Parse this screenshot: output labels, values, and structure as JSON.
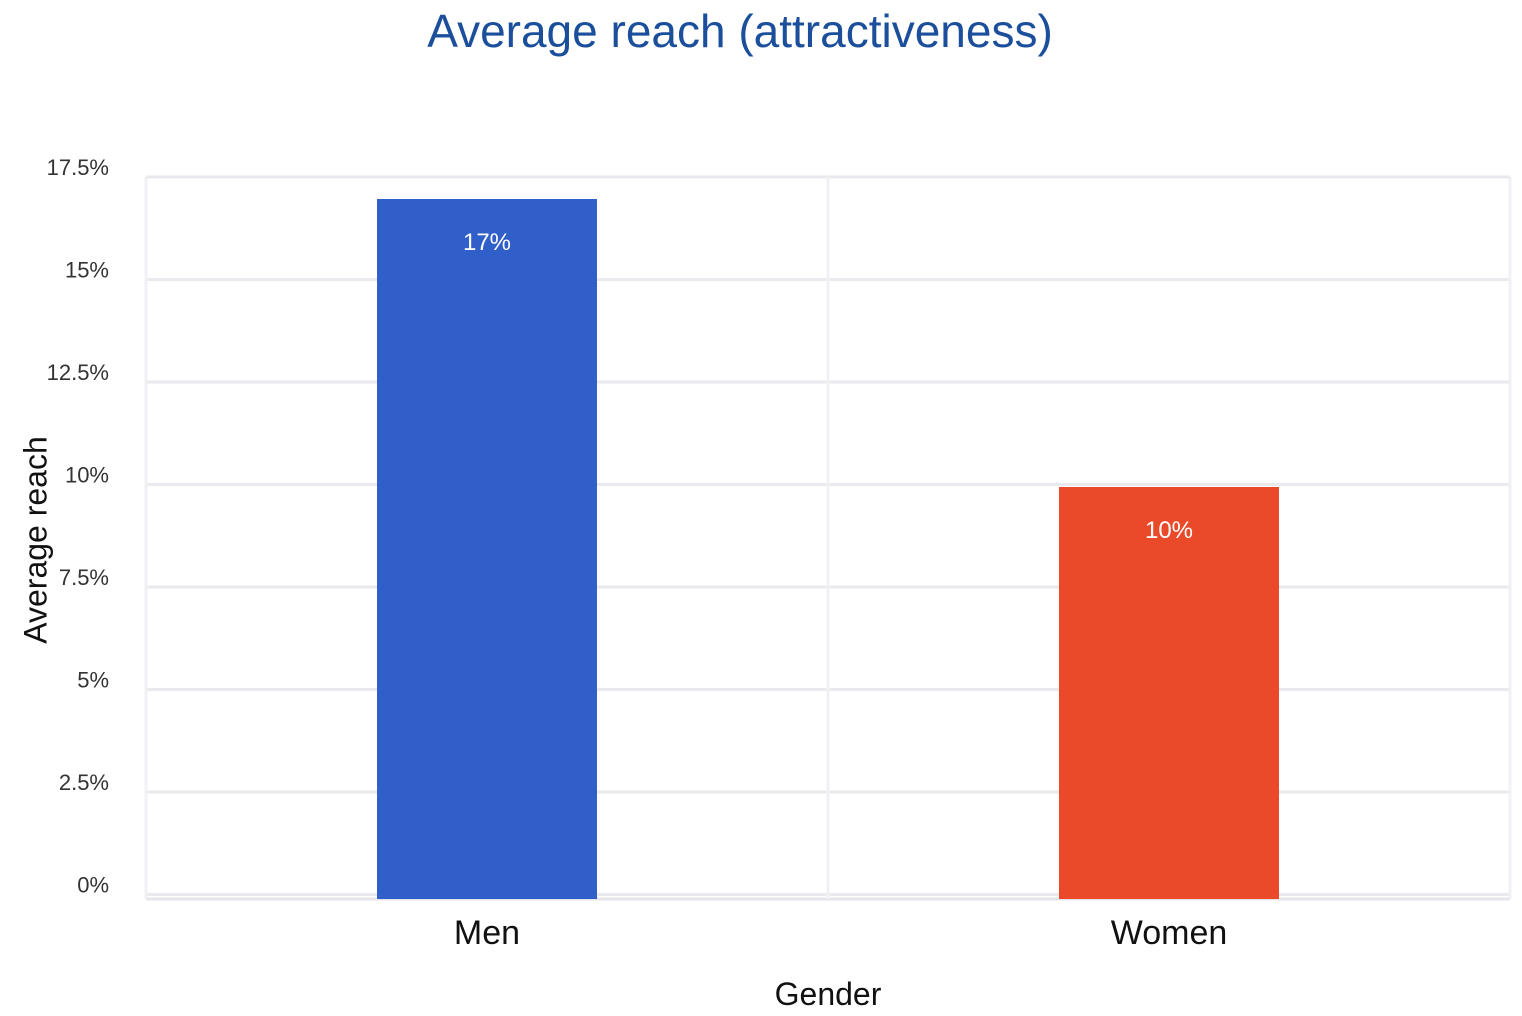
{
  "chart_data": {
    "type": "bar",
    "title": "Average reach (attractiveness)",
    "xlabel": "Gender",
    "ylabel": "Average reach",
    "categories": [
      "Men",
      "Women"
    ],
    "values": [
      17,
      10
    ],
    "data_labels": [
      "17%",
      "10%"
    ],
    "colors": [
      "#315fca",
      "#ea4a2a"
    ],
    "yticks": [
      "17.5%",
      "15%",
      "12.5%",
      "10%",
      "7.5%",
      "5%",
      "2.5%",
      "0%"
    ],
    "grid": true,
    "legend": "none"
  }
}
